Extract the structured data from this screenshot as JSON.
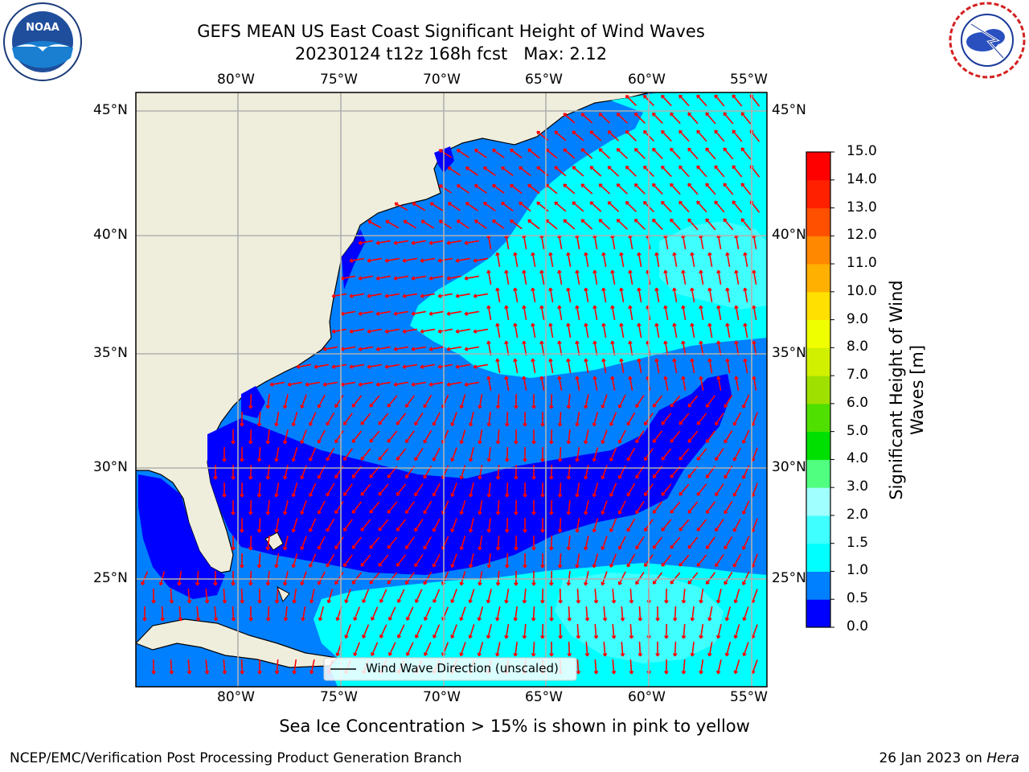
{
  "header": {
    "title_line1": "GEFS MEAN US East Coast Significant Height of Wind Waves",
    "title_line2": "20230124 t12z 168h fcst   Max: 2.12"
  },
  "logos": {
    "left": {
      "name": "noaa-logo",
      "text": "NOAA"
    },
    "right": {
      "name": "nws-logo",
      "text": "NATIONAL WEATHER SERVICE"
    }
  },
  "map": {
    "lon_labels": [
      "80°W",
      "75°W",
      "70°W",
      "65°W",
      "60°W",
      "55°W"
    ],
    "lat_labels": [
      "45°N",
      "40°N",
      "35°N",
      "30°N",
      "25°N"
    ],
    "legend_label": "Wind Wave Direction (unscaled)",
    "colors": {
      "land": "#efeedd",
      "coast": "#000000",
      "grid": "#b0b0b0",
      "arrow": "#ff0000"
    }
  },
  "colorbar": {
    "title": "Significant Height of Wind Waves [m]",
    "title_line1": "Significant Height of Wind",
    "title_line2": "Waves [m]",
    "levels": [
      0.0,
      0.5,
      1.0,
      1.5,
      2.0,
      3.0,
      4.0,
      5.0,
      6.0,
      7.0,
      8.0,
      9.0,
      10.0,
      11.0,
      12.0,
      13.0,
      14.0,
      15.0
    ],
    "tick_labels": [
      "0.0",
      "0.5",
      "1.0",
      "1.5",
      "2.0",
      "3.0",
      "4.0",
      "5.0",
      "6.0",
      "7.0",
      "8.0",
      "9.0",
      "10.0",
      "11.0",
      "12.0",
      "13.0",
      "14.0",
      "15.0"
    ],
    "colors": [
      "#0000ff",
      "#0080ff",
      "#00ffff",
      "#40ffff",
      "#a0ffff",
      "#50ff80",
      "#00e000",
      "#50e000",
      "#a0e000",
      "#d0f000",
      "#f0ff00",
      "#ffe000",
      "#ffb000",
      "#ff8800",
      "#ff5000",
      "#ff2000",
      "#ff0000"
    ]
  },
  "footer": {
    "note": "Sea Ice Concentration > 15% is shown in pink to yellow",
    "left": "NCEP/EMC/Verification Post Processing Product Generation Branch",
    "right_date": "26 Jan 2023 on ",
    "right_host": "Hera"
  }
}
